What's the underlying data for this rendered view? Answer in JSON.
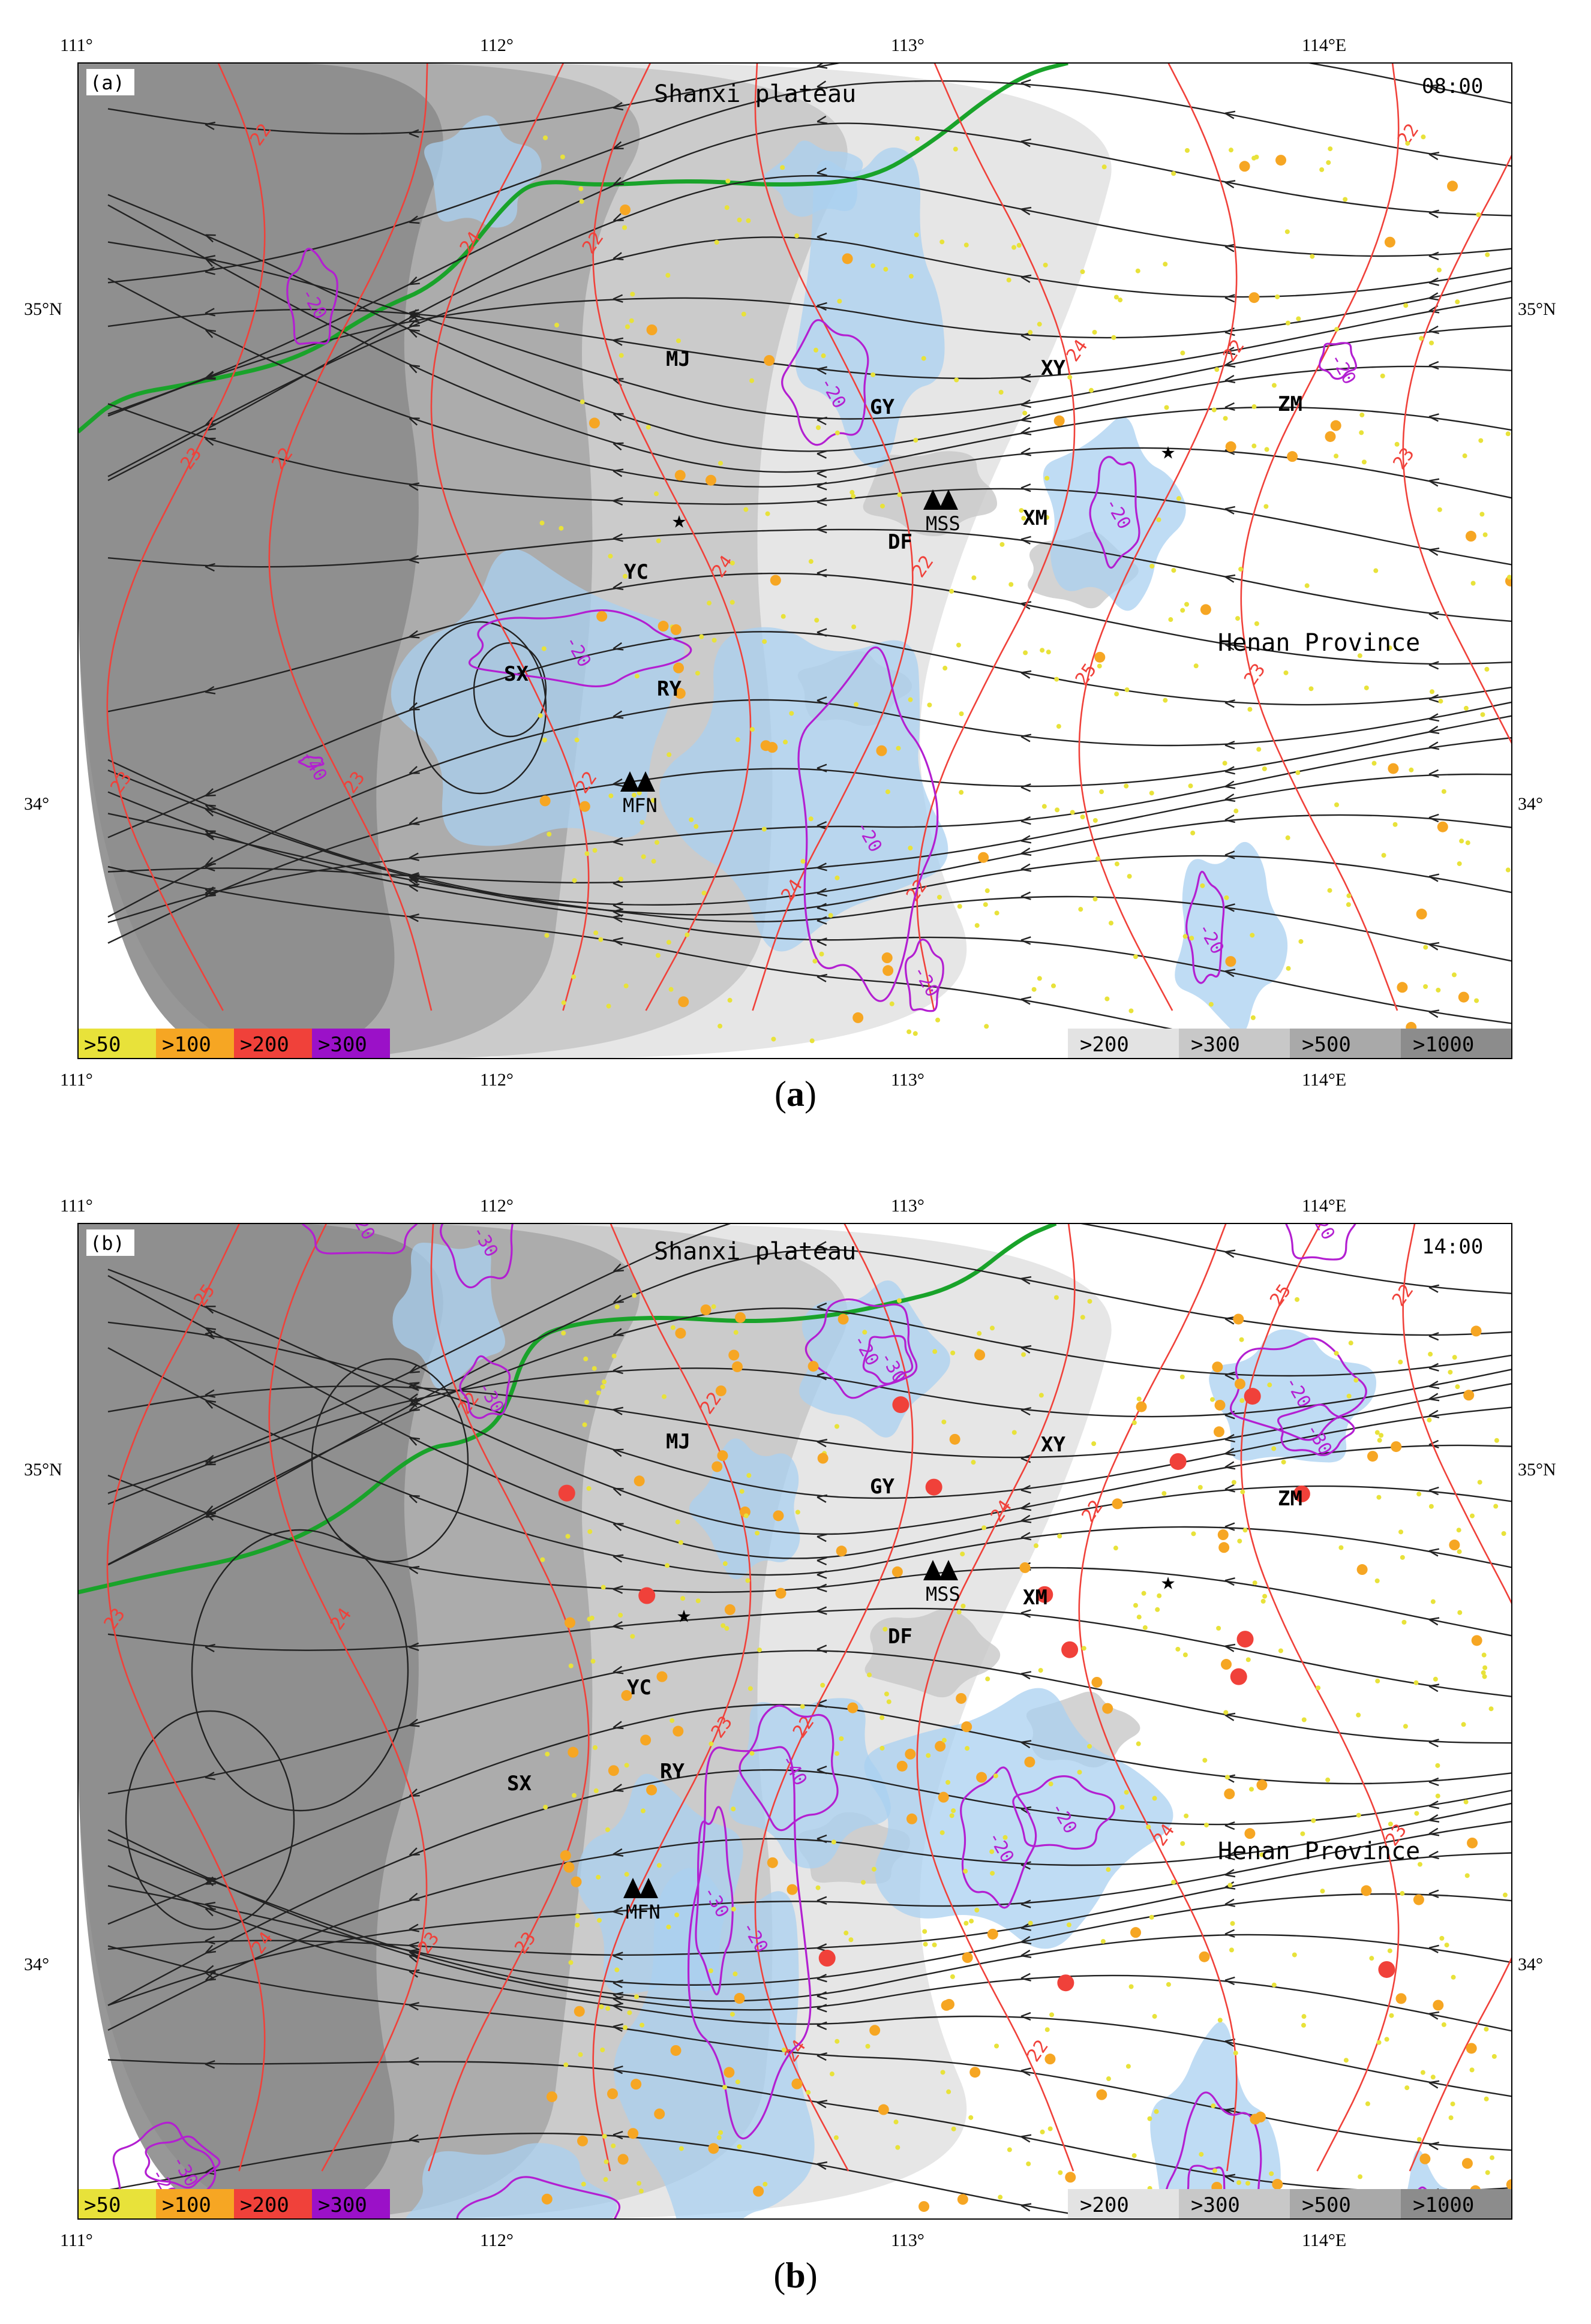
{
  "panels": [
    {
      "panel_label": "(a)",
      "time": "08:00",
      "caption": "a",
      "region_labels": {
        "plateau": "Shanxi plateau",
        "province": "Henan Province"
      },
      "stations": [
        "MJ",
        "GY",
        "XY",
        "ZM",
        "XM",
        "DF",
        "YC",
        "SX",
        "RY"
      ],
      "mountain_labels": [
        "MSS",
        "MFN"
      ],
      "lon_ticks": [
        "111°",
        "112°",
        "113°",
        "114°E"
      ],
      "lat_ticks": [
        "35°N",
        "34°"
      ],
      "precip_legend": [
        ">50",
        ">100",
        ">200",
        ">300"
      ],
      "terrain_legend": [
        ">200",
        ">300",
        ">500",
        ">1000"
      ],
      "red_contour_labels": [
        "22",
        "22",
        "22",
        "22",
        "22",
        "22",
        "22",
        "23",
        "23",
        "23",
        "23",
        "24",
        "24",
        "24",
        "24",
        "25",
        "22",
        "23",
        "23"
      ],
      "magenta_contour_labels": [
        "-20",
        "-20",
        "-20",
        "-20",
        "-20",
        "-20",
        "-20",
        "-20",
        "-40"
      ]
    },
    {
      "panel_label": "(b)",
      "time": "14:00",
      "caption": "b",
      "region_labels": {
        "plateau": "Shanxi plateau",
        "province": "Henan Province"
      },
      "stations": [
        "MJ",
        "GY",
        "XY",
        "ZM",
        "XM",
        "DF",
        "YC",
        "SX",
        "RY"
      ],
      "mountain_labels": [
        "MSS",
        "MFN"
      ],
      "lon_ticks": [
        "111°",
        "112°",
        "113°",
        "114°E"
      ],
      "lat_ticks": [
        "35°N",
        "34°"
      ],
      "precip_legend": [
        ">50",
        ">100",
        ">200",
        ">300"
      ],
      "terrain_legend": [
        ">200",
        ">300",
        ">500",
        ">1000"
      ],
      "red_contour_labels": [
        "25",
        "24",
        "23",
        "22",
        "22",
        "22",
        "22",
        "23",
        "22",
        "23",
        "23",
        "22",
        "23",
        "24",
        "24",
        "24",
        "25",
        "23",
        "24"
      ],
      "magenta_contour_labels": [
        "-20",
        "-30",
        "-20",
        "-30",
        "-20",
        "-30",
        "-20",
        "-30",
        "-40",
        "-20",
        "-30",
        "-20",
        "-20",
        "-20",
        "-30",
        "-30",
        "-20",
        "-30",
        "-20"
      ]
    }
  ],
  "colors": {
    "precip_50": "#e8e23a",
    "precip_100": "#f6a623",
    "precip_200": "#f0413a",
    "precip_300": "#9b11c8",
    "terrain_200": "#e3e3e3",
    "terrain_300": "#c8c8c8",
    "terrain_500": "#a9a9a9",
    "terrain_1000": "#8c8c8c",
    "blue_shade": "#a9d0f0",
    "temp_contour": "#f0413a",
    "div_contour": "#b31fd1",
    "border": "#19a32a",
    "streamline": "#222222"
  }
}
